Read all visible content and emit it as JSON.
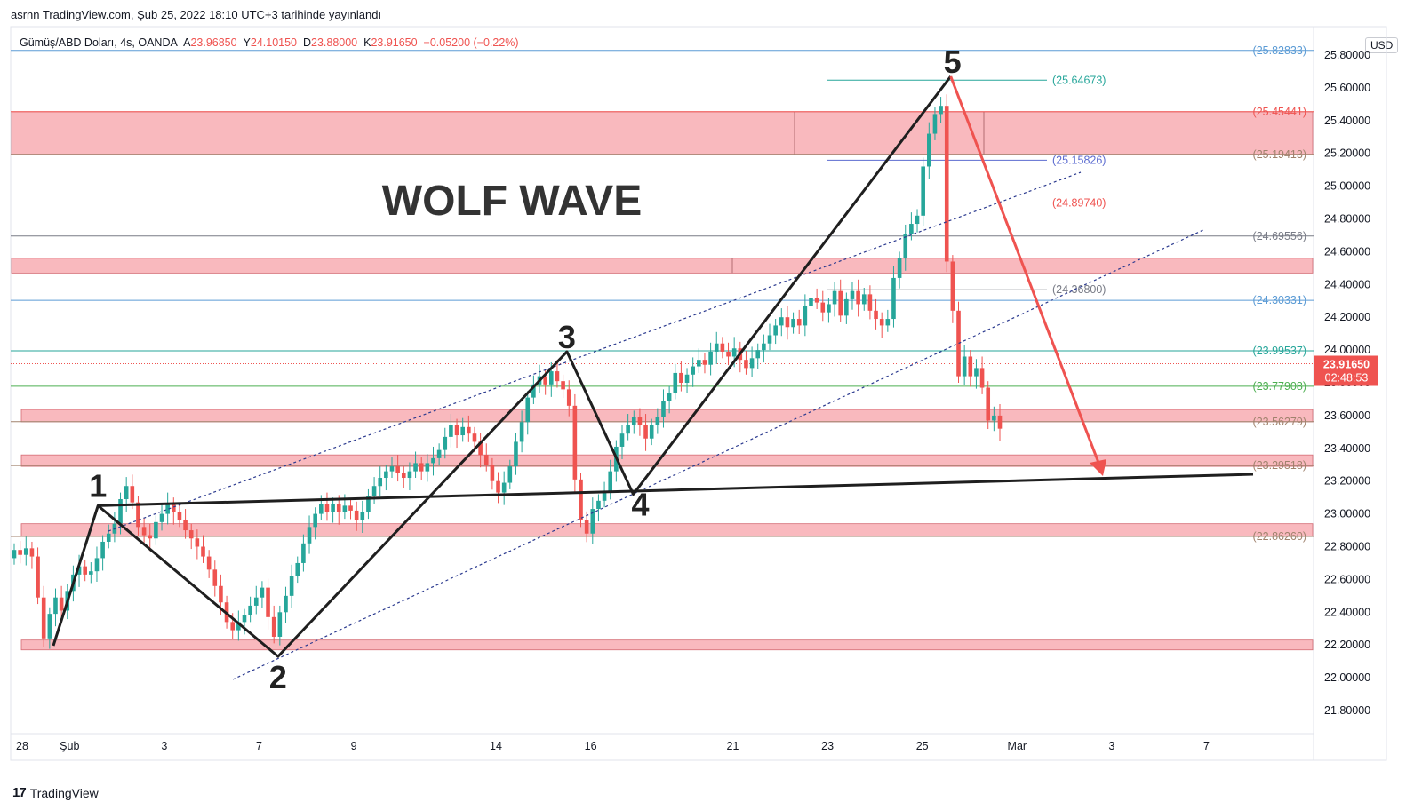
{
  "header": {
    "text": "asrnn TradingView.com, Şub 25, 2022 18:10 UTC+3 tarihinde yayınlandı"
  },
  "info": {
    "symbol": "Gümüş/ABD Doları, 4s, OANDA",
    "o_label": "A",
    "o_val": "23.96850",
    "h_label": "Y",
    "h_val": "24.10150",
    "l_label": "D",
    "l_val": "23.88000",
    "c_label": "K",
    "c_val": "23.91650",
    "change": "−0.05200 (−0.22%)"
  },
  "currency": "USD",
  "title": "WOLF WAVE",
  "footer": {
    "logo": "17",
    "brand": "TradingView"
  },
  "colors": {
    "bull": "#26a69a",
    "bear": "#ef5350",
    "zone": "#f7a1a8",
    "wave": "#1f1f1f",
    "arrow": "#ef5350",
    "channel": "#2b3a8f",
    "price_badge": "#ef5350"
  },
  "chart_data": {
    "type": "candlestick",
    "title": "WOLF WAVE",
    "symbol": "Gümüş/ABD Doları, 4s, OANDA",
    "y_ticks": [
      "25.80000",
      "25.60000",
      "25.40000",
      "25.20000",
      "25.00000",
      "24.80000",
      "24.60000",
      "24.40000",
      "24.20000",
      "24.00000",
      "23.80000",
      "23.60000",
      "23.40000",
      "23.20000",
      "23.00000",
      "22.80000",
      "22.60000",
      "22.40000",
      "22.20000",
      "22.00000",
      "21.80000"
    ],
    "ylim": [
      21.72,
      25.9
    ],
    "x_ticks": [
      {
        "label": "28",
        "day": 0
      },
      {
        "label": "Şub",
        "day": 1
      },
      {
        "label": "3",
        "day": 3
      },
      {
        "label": "7",
        "day": 5
      },
      {
        "label": "9",
        "day": 7
      },
      {
        "label": "14",
        "day": 10
      },
      {
        "label": "16",
        "day": 12
      },
      {
        "label": "21",
        "day": 15
      },
      {
        "label": "23",
        "day": 17
      },
      {
        "label": "25",
        "day": 19
      },
      {
        "label": "Mar",
        "day": 21
      },
      {
        "label": "3",
        "day": 23
      },
      {
        "label": "7",
        "day": 25
      }
    ],
    "current_price": {
      "value": 23.9165,
      "price": "23.91650",
      "countdown": "02:48:53"
    },
    "levels": [
      {
        "label": "(25.82833)",
        "value": 25.82833,
        "color": "#5b9bd5"
      },
      {
        "label": "(25.64673)",
        "value": 25.64673,
        "color": "#26a69a"
      },
      {
        "label": "(25.45441)",
        "value": 25.45441,
        "color": "#ef5350"
      },
      {
        "label": "(25.19413)",
        "value": 25.19413,
        "color": "#a0826d"
      },
      {
        "label": "(25.15826)",
        "value": 25.15826,
        "color": "#5b6bd0"
      },
      {
        "label": "(24.89740)",
        "value": 24.8974,
        "color": "#ef5350"
      },
      {
        "label": "(24.69556)",
        "value": 24.69556,
        "color": "#787b86"
      },
      {
        "label": "(24.36800)",
        "value": 24.368,
        "color": "#787b86"
      },
      {
        "label": "(24.30331)",
        "value": 24.30331,
        "color": "#5b9bd5"
      },
      {
        "label": "(23.99537)",
        "value": 23.99537,
        "color": "#26a69a"
      },
      {
        "label": "(23.77908)",
        "value": 23.77908,
        "color": "#4caf50"
      },
      {
        "label": "(23.56279)",
        "value": 23.56279,
        "color": "#a0826d"
      },
      {
        "label": "(23.29518)",
        "value": 23.29518,
        "color": "#a0826d"
      },
      {
        "label": "(22.86260)",
        "value": 22.8626,
        "color": "#a0826d"
      }
    ],
    "zones": [
      {
        "top": 25.454,
        "bottom": 25.194
      },
      {
        "top": 24.56,
        "bottom": 24.47
      },
      {
        "top": 23.637,
        "bottom": 23.562
      },
      {
        "top": 23.36,
        "bottom": 23.29
      },
      {
        "top": 22.94,
        "bottom": 22.863
      },
      {
        "top": 22.23,
        "bottom": 22.17
      }
    ],
    "wave_points": [
      {
        "label": "1",
        "day": 1.6,
        "price": 23.05
      },
      {
        "label": "2",
        "day": 5.4,
        "price": 22.13
      },
      {
        "label": "3",
        "day": 11.5,
        "price": 23.99
      },
      {
        "label": "4",
        "day": 12.9,
        "price": 23.12
      },
      {
        "label": "5",
        "day": 19.6,
        "price": 25.67
      }
    ],
    "start": 22.73,
    "candle_changes": [
      0.05,
      -0.03,
      0.04,
      -0.05,
      -0.25,
      -0.25,
      0.15,
      0.1,
      -0.08,
      0.12,
      0.1,
      0.05,
      -0.05,
      0.02,
      0.08,
      0.1,
      0.05,
      0.06,
      0.15,
      0.08,
      -0.1,
      -0.15,
      -0.05,
      -0.02,
      0.1,
      0.05,
      0.06,
      -0.05,
      -0.05,
      -0.06,
      -0.05,
      -0.05,
      -0.06,
      -0.08,
      -0.1,
      -0.1,
      -0.12,
      -0.05,
      0.05,
      0.04,
      0.06,
      0.05,
      0.06,
      -0.18,
      -0.12,
      0.15,
      0.1,
      0.12,
      0.08,
      0.12,
      0.1,
      0.08,
      0.06,
      -0.05,
      0.05,
      -0.05,
      0.04,
      -0.03,
      -0.06,
      0.05,
      0.1,
      0.06,
      0.05,
      0.04,
      0.03,
      -0.04,
      -0.03,
      0.04,
      0.05,
      -0.05,
      0.05,
      0.03,
      0.05,
      0.08,
      0.07,
      -0.06,
      0.05,
      -0.04,
      -0.05,
      -0.08,
      -0.06,
      -0.1,
      -0.07,
      0.06,
      0.1,
      0.15,
      0.12,
      0.15,
      0.08,
      0.05,
      -0.05,
      0.08,
      -0.06,
      -0.05,
      -0.1,
      -0.45,
      -0.25,
      -0.08,
      0.15,
      0.05,
      0.06,
      0.12,
      0.15,
      0.08,
      0.05,
      0.05,
      -0.05,
      -0.08,
      0.08,
      0.05,
      0.1,
      0.05,
      0.12,
      -0.06,
      0.05,
      0.05,
      0.04,
      -0.03,
      0.08,
      0.05,
      -0.05,
      -0.03,
      0.05,
      -0.07,
      -0.05,
      0.06,
      0.05,
      0.04,
      0.05,
      0.06,
      0.05,
      -0.06,
      0.05,
      -0.04,
      0.12,
      0.05,
      -0.03,
      -0.06,
      0.05,
      0.08,
      -0.15,
      0.1,
      0.05,
      -0.08,
      0.06,
      -0.1,
      -0.05,
      -0.04,
      0.04,
      0.25,
      0.12,
      0.15,
      0.06,
      0.05,
      0.3,
      0.2,
      0.12,
      0.05,
      -0.95,
      -0.3,
      -0.4,
      0.12,
      -0.12,
      0.05,
      -0.12,
      -0.2,
      0.03,
      -0.08
    ]
  }
}
